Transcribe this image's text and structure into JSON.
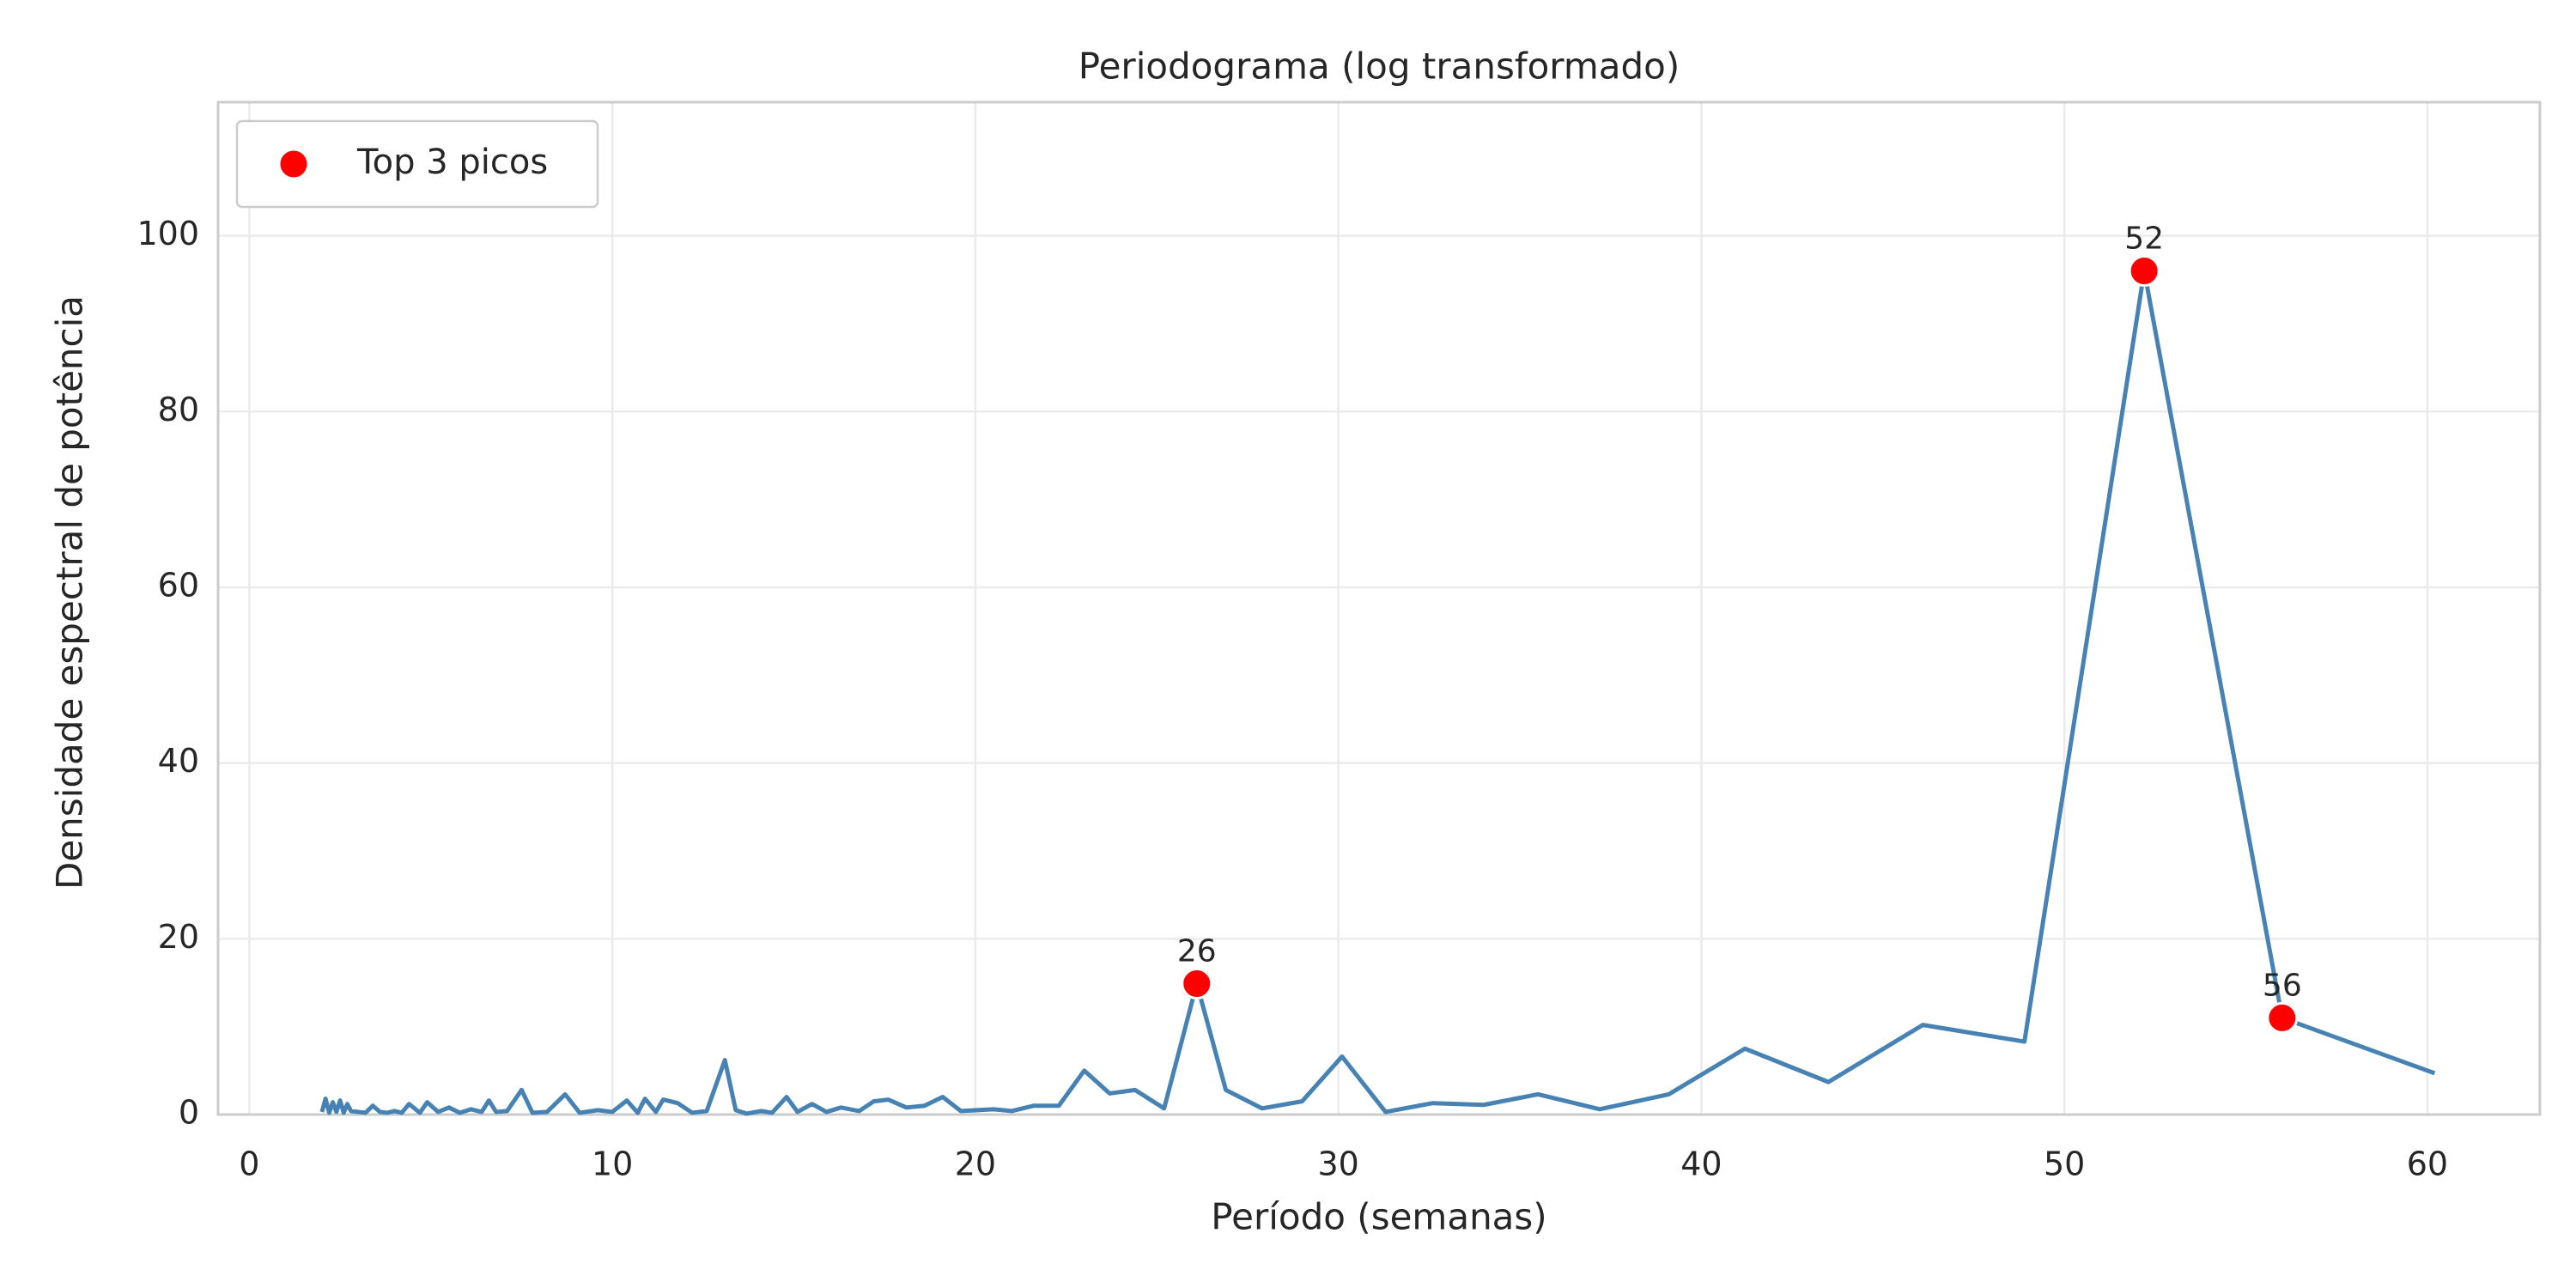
{
  "chart_data": {
    "type": "line",
    "title": "Periodograma (log transformado)",
    "x_label": "Período (semanas)",
    "y_label": "Densidade espectral de potência",
    "xlim": [
      -0.86,
      63.1
    ],
    "ylim": [
      0,
      115.2
    ],
    "xticks": [
      0,
      10,
      20,
      30,
      40,
      50,
      60
    ],
    "yticks": [
      0,
      20,
      40,
      60,
      80,
      100
    ],
    "grid": true,
    "legend": "upper left",
    "series": [
      {
        "type": "line",
        "color": "#4682b4",
        "x": [
          2.0,
          2.1,
          2.2,
          2.3,
          2.4,
          2.5,
          2.6,
          2.7,
          2.8,
          3.0,
          3.2,
          3.4,
          3.6,
          3.8,
          4.0,
          4.2,
          4.4,
          4.7,
          4.9,
          5.2,
          5.5,
          5.8,
          6.1,
          6.4,
          6.6,
          6.8,
          7.1,
          7.5,
          7.8,
          8.2,
          8.7,
          9.1,
          9.6,
          10.0,
          10.4,
          10.7,
          10.9,
          11.2,
          11.4,
          11.8,
          12.2,
          12.6,
          13.1,
          13.4,
          13.7,
          14.1,
          14.4,
          14.8,
          15.1,
          15.5,
          15.9,
          16.3,
          16.8,
          17.2,
          17.6,
          18.1,
          18.6,
          19.1,
          19.6,
          20.5,
          21.0,
          21.6,
          22.3,
          23.0,
          23.7,
          24.4,
          25.2,
          26.1,
          26.9,
          27.9,
          29.0,
          30.1,
          31.3,
          32.6,
          34.0,
          35.5,
          37.2,
          39.1,
          41.2,
          43.5,
          46.1,
          48.9,
          52.2,
          56.0,
          60.2
        ],
        "values": [
          0.3,
          1.8,
          0.2,
          1.4,
          0.3,
          1.6,
          0.2,
          1.2,
          0.4,
          0.3,
          0.2,
          1.0,
          0.3,
          0.2,
          0.4,
          0.2,
          1.2,
          0.2,
          1.4,
          0.3,
          0.8,
          0.2,
          0.6,
          0.3,
          1.6,
          0.3,
          0.4,
          2.8,
          0.2,
          0.3,
          2.3,
          0.2,
          0.5,
          0.3,
          1.6,
          0.2,
          1.8,
          0.3,
          1.7,
          1.3,
          0.2,
          0.4,
          6.2,
          0.5,
          0.1,
          0.4,
          0.2,
          2.0,
          0.3,
          1.2,
          0.3,
          0.8,
          0.4,
          1.5,
          1.7,
          0.8,
          1.0,
          2.0,
          0.4,
          0.6,
          0.4,
          1.0,
          1.0,
          5.0,
          2.4,
          2.8,
          0.7,
          14.9,
          2.8,
          0.7,
          1.5,
          6.6,
          0.3,
          1.3,
          1.1,
          2.3,
          0.6,
          2.3,
          7.5,
          3.7,
          10.2,
          8.3,
          96.0,
          11.0,
          4.7
        ]
      },
      {
        "type": "scatter",
        "name": "Top 3 picos",
        "color": "#ff0000",
        "x": [
          52.2,
          26.1,
          56.0
        ],
        "values": [
          96.0,
          14.9,
          11.0
        ],
        "value_labels": [
          "52",
          "26",
          "56"
        ]
      }
    ]
  }
}
